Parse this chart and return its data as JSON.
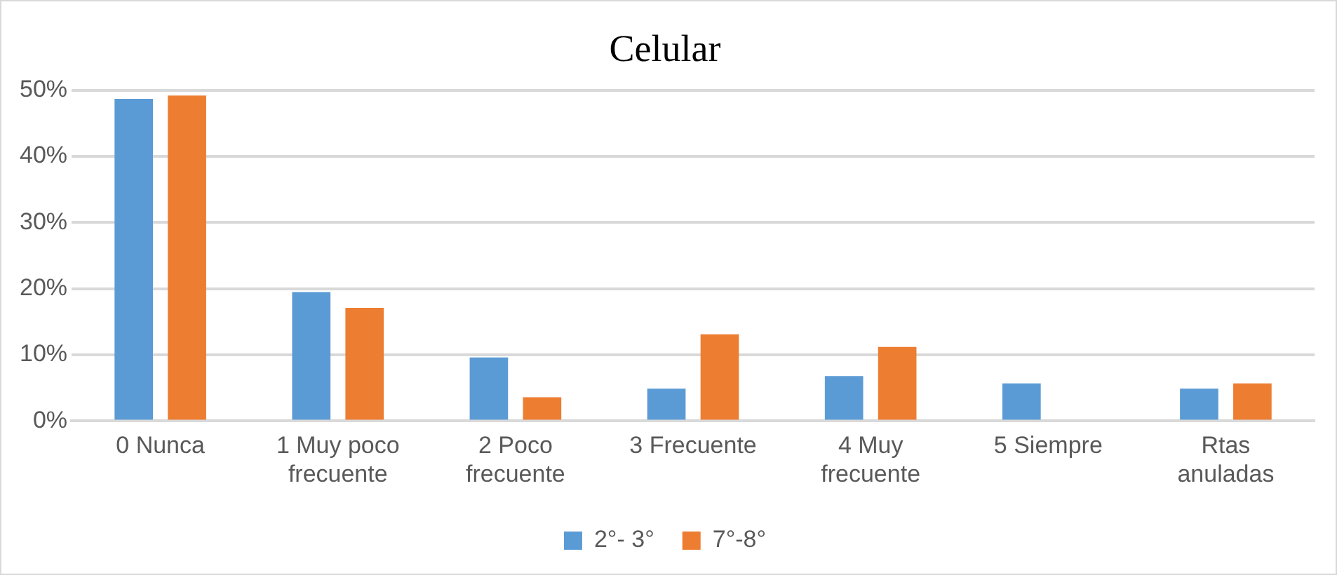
{
  "chart_data": {
    "type": "bar",
    "title": "Celular",
    "categories": [
      "0 Nunca",
      "1 Muy poco frecuente",
      "2 Poco frecuente",
      "3 Frecuente",
      "4 Muy frecuente",
      "5 Siempre",
      "Rtas anuladas"
    ],
    "series": [
      {
        "name": "2°- 3°",
        "color": "#5b9bd5",
        "values": [
          48.7,
          19.5,
          9.6,
          4.9,
          6.8,
          5.7,
          4.9
        ]
      },
      {
        "name": "7°-8°",
        "color": "#ed7d31",
        "values": [
          49.2,
          17.1,
          3.6,
          13.1,
          11.2,
          0,
          5.7
        ]
      }
    ],
    "ylim": [
      0,
      50
    ],
    "yticks": [
      {
        "value": 0,
        "label": "0%"
      },
      {
        "value": 10,
        "label": "10%"
      },
      {
        "value": 20,
        "label": "20%"
      },
      {
        "value": 30,
        "label": "30%"
      },
      {
        "value": 40,
        "label": "40%"
      },
      {
        "value": 50,
        "label": "50%"
      }
    ],
    "grid": "y",
    "legend": "bottom"
  }
}
